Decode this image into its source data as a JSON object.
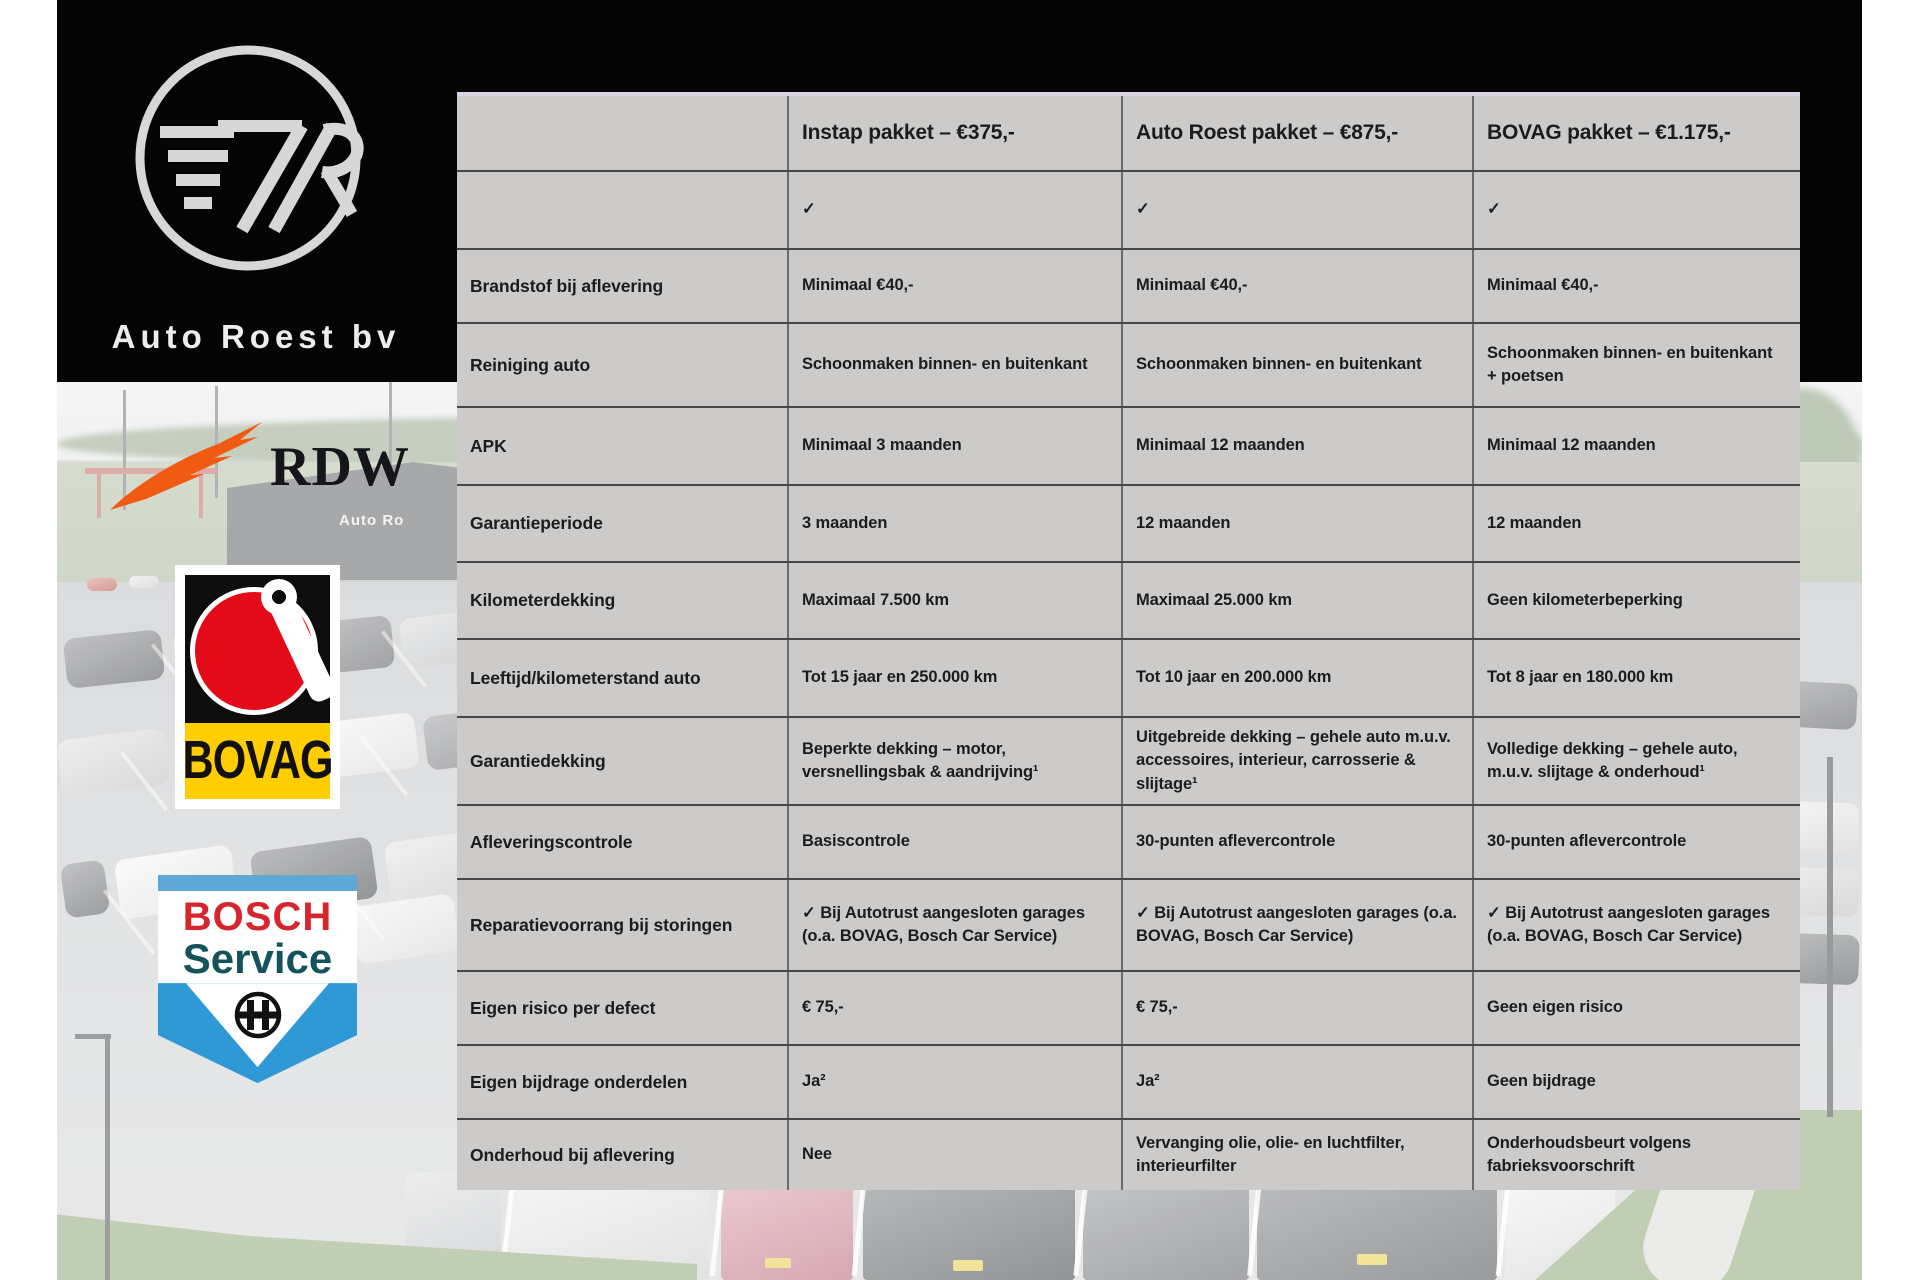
{
  "company": {
    "name": "Auto Roest bv",
    "monogram": "7R"
  },
  "partners": {
    "rdw_label": "RDW",
    "bovag_label": "BOVAG",
    "bosch_line1": "BOSCH",
    "bosch_line2": "Service"
  },
  "photo": {
    "building_sign": "Auto Ro"
  },
  "table": {
    "headers": [
      "",
      "Instap pakket – €375,-",
      "Auto Roest pakket – €875,-",
      "BOVAG pakket – €1.175,-"
    ],
    "rows": [
      {
        "label": "",
        "cells": [
          "✓",
          "✓",
          "✓"
        ]
      },
      {
        "label": "Brandstof bij aflevering",
        "cells": [
          "Minimaal €40,-",
          "Minimaal €40,-",
          "Minimaal €40,-"
        ]
      },
      {
        "label": "Reiniging auto",
        "cells": [
          "Schoonmaken binnen- en buitenkant",
          "Schoonmaken binnen- en buitenkant",
          "Schoonmaken binnen- en buitenkant + poetsen"
        ]
      },
      {
        "label": "APK",
        "cells": [
          "Minimaal 3 maanden",
          "Minimaal 12 maanden",
          "Minimaal 12 maanden"
        ]
      },
      {
        "label": "Garantieperiode",
        "cells": [
          "3 maanden",
          "12 maanden",
          "12 maanden"
        ]
      },
      {
        "label": "Kilometerdekking",
        "cells": [
          "Maximaal 7.500 km",
          "Maximaal 25.000 km",
          "Geen kilometerbeperking"
        ]
      },
      {
        "label": "Leeftijd/kilometerstand auto",
        "cells": [
          "Tot 15 jaar en 250.000 km",
          "Tot 10 jaar en 200.000 km",
          "Tot 8 jaar en 180.000 km"
        ]
      },
      {
        "label": "Garantiedekking",
        "cells": [
          "Beperkte dekking – motor, versnellingsbak & aandrijving¹",
          "Uitgebreide dekking – gehele auto m.u.v. accessoires, interieur, carrosserie & slijtage¹",
          "Volledige dekking – gehele auto, m.u.v. slijtage & onderhoud¹"
        ]
      },
      {
        "label": "Afleveringscontrole",
        "cells": [
          "Basiscontrole",
          "30-punten aflevercontrole",
          "30-punten aflevercontrole"
        ]
      },
      {
        "label": "Reparatievoorrang bij storingen",
        "cells": [
          "✓ Bij Autotrust aangesloten garages (o.a. BOVAG, Bosch Car Service)",
          "✓ Bij Autotrust aangesloten garages (o.a. BOVAG, Bosch Car Service)",
          "✓ Bij Autotrust aangesloten garages (o.a. BOVAG, Bosch Car Service)"
        ]
      },
      {
        "label": "Eigen risico per defect",
        "cells": [
          "€ 75,-",
          "€ 75,-",
          "Geen eigen risico"
        ]
      },
      {
        "label": "Eigen bijdrage onderdelen",
        "cells": [
          "Ja²",
          "Ja²",
          "Geen bijdrage"
        ]
      },
      {
        "label": "Onderhoud bij aflevering",
        "cells": [
          "Nee",
          "Vervanging olie, olie- en luchtfilter, interieurfilter",
          "Onderhoudsbeurt volgens fabrieksvoorschrift"
        ]
      }
    ]
  },
  "colors": {
    "bovag_red": "#e30b17",
    "bovag_yellow": "#ffcd00",
    "bosch_red": "#d6252c",
    "bosch_teal": "#14525c",
    "bosch_blue": "#2f99d6",
    "rdw_orange": "#f05a12"
  }
}
